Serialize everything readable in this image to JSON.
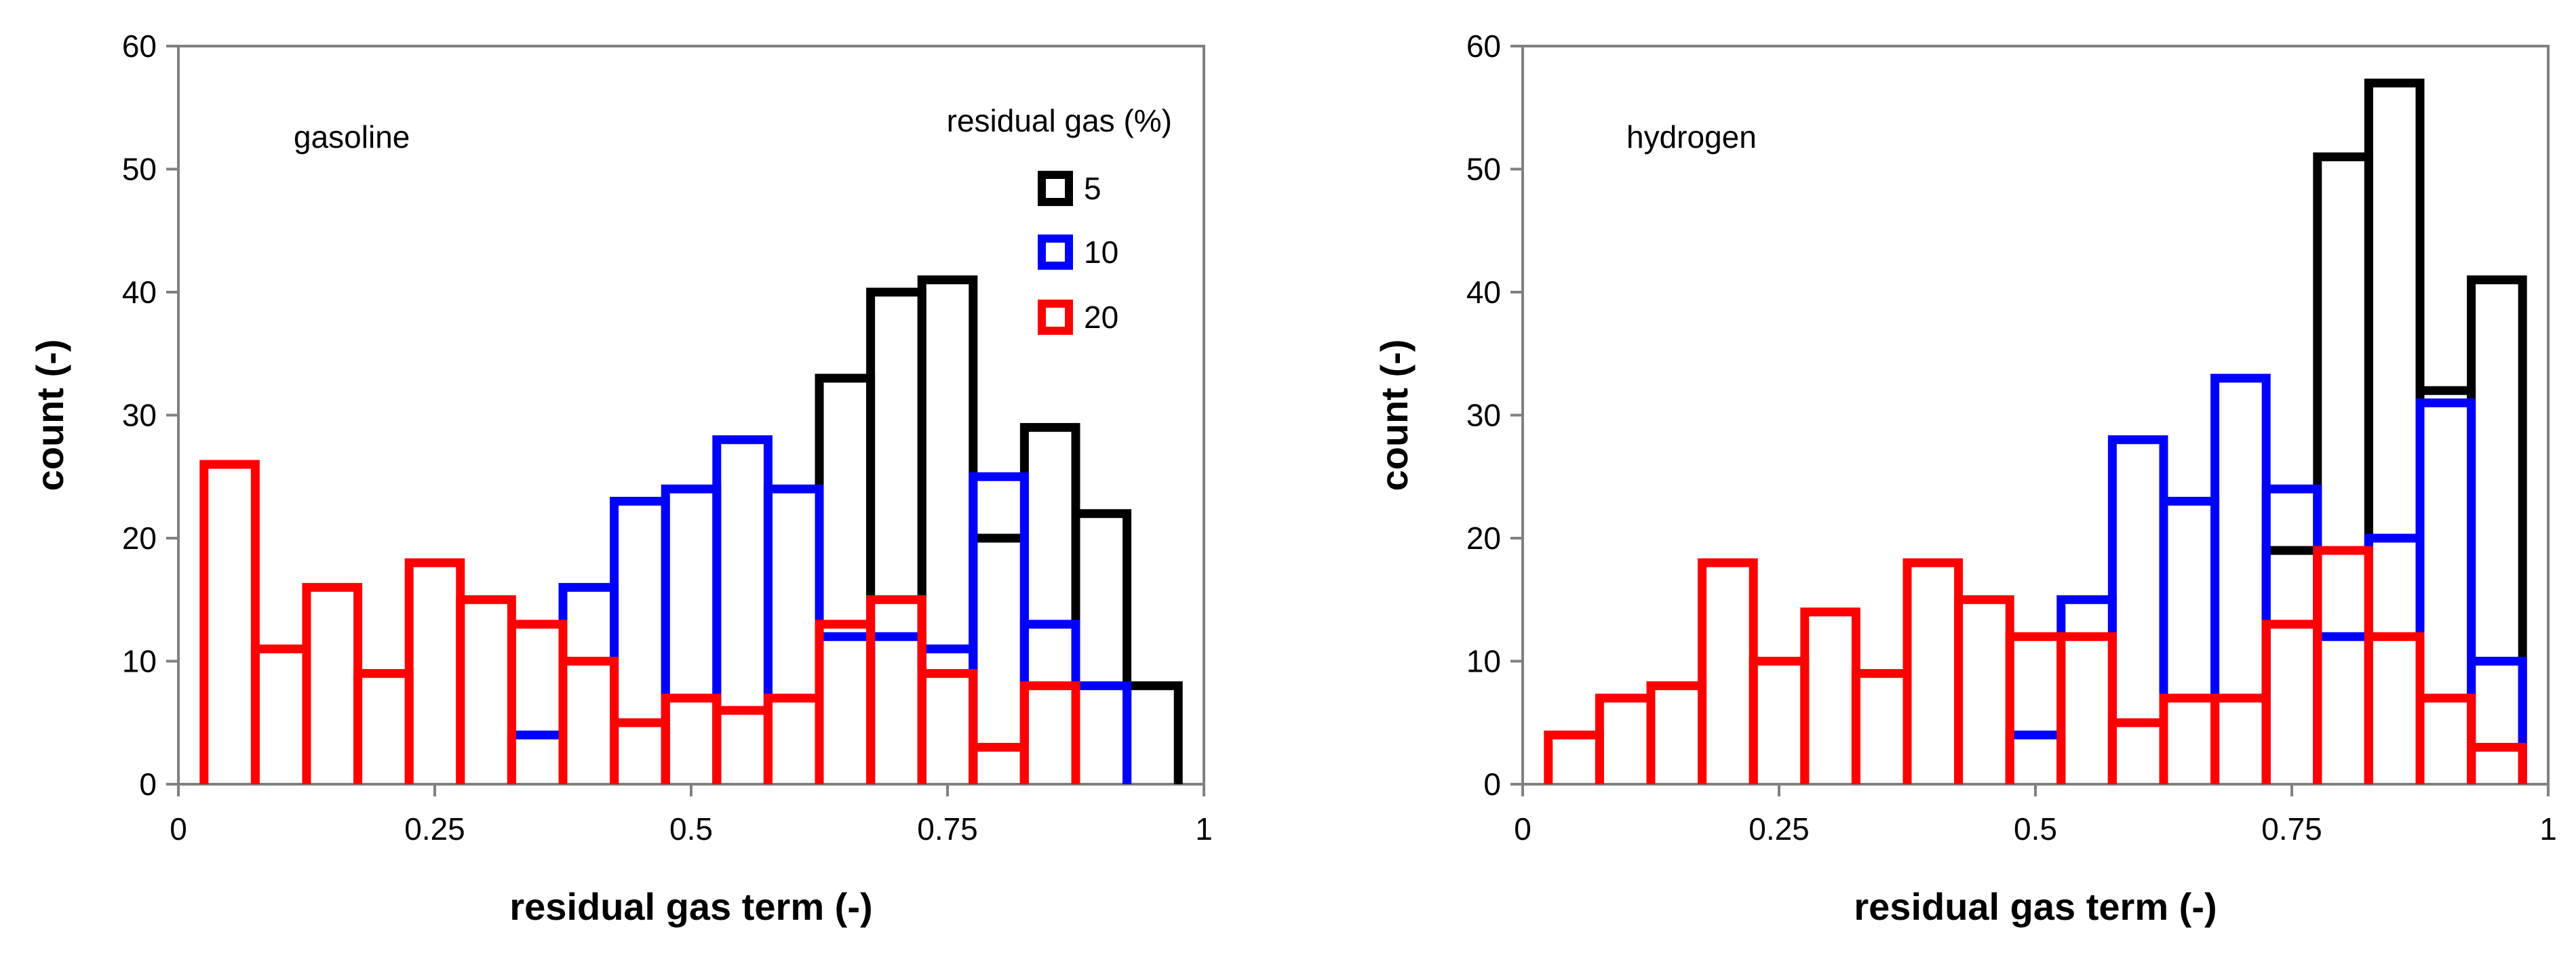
{
  "chart_data": [
    {
      "type": "step-histogram",
      "xlabel": "residual gas term (-)",
      "ylabel": "count (-)",
      "xlim": [
        0,
        1
      ],
      "ylim": [
        0,
        60
      ],
      "x_ticks": [
        "0",
        "0.25",
        "0.5",
        "0.75",
        "1"
      ],
      "y_ticks": [
        "0",
        "10",
        "20",
        "30",
        "40",
        "50",
        "60"
      ],
      "annotation": "gasoline",
      "legend": {
        "title": "residual gas (%)",
        "entries": [
          {
            "label": "5",
            "color": "#000000"
          },
          {
            "label": "10",
            "color": "#0000FF"
          },
          {
            "label": "20",
            "color": "#FF0000"
          }
        ]
      },
      "bin_width": 0.05,
      "bin_starts": [
        0.025,
        0.075,
        0.125,
        0.175,
        0.225,
        0.275,
        0.325,
        0.375,
        0.425,
        0.475,
        0.525,
        0.575,
        0.625,
        0.675,
        0.725,
        0.775,
        0.825,
        0.875,
        0.925
      ],
      "series": [
        {
          "name": "5",
          "color": "#000000",
          "values": [
            0,
            0,
            0,
            0,
            0,
            0,
            0,
            0,
            0,
            0,
            0,
            0,
            33,
            40,
            41,
            20,
            29,
            22,
            8
          ]
        },
        {
          "name": "10",
          "color": "#0000FF",
          "values": [
            0,
            0,
            0,
            0,
            0,
            0,
            4,
            16,
            23,
            24,
            28,
            24,
            12,
            12,
            11,
            25,
            13,
            8,
            0
          ]
        },
        {
          "name": "20",
          "color": "#FF0000",
          "values": [
            26,
            11,
            16,
            9,
            18,
            15,
            13,
            10,
            5,
            7,
            6,
            7,
            13,
            15,
            9,
            3,
            8,
            0,
            0
          ]
        }
      ]
    },
    {
      "type": "step-histogram",
      "xlabel": "residual gas term (-)",
      "ylabel": "count (-)",
      "xlim": [
        0,
        1
      ],
      "ylim": [
        0,
        60
      ],
      "x_ticks": [
        "0",
        "0.25",
        "0.5",
        "0.75",
        "1"
      ],
      "y_ticks": [
        "0",
        "10",
        "20",
        "30",
        "40",
        "50",
        "60"
      ],
      "annotation": "hydrogen",
      "bin_width": 0.05,
      "bin_starts": [
        0.025,
        0.075,
        0.125,
        0.175,
        0.225,
        0.275,
        0.325,
        0.375,
        0.425,
        0.475,
        0.525,
        0.575,
        0.625,
        0.675,
        0.725,
        0.775,
        0.825,
        0.875,
        0.925
      ],
      "series": [
        {
          "name": "5",
          "color": "#000000",
          "values": [
            0,
            0,
            0,
            0,
            0,
            0,
            0,
            0,
            0,
            0,
            0,
            0,
            0,
            0,
            19,
            51,
            57,
            32,
            41
          ]
        },
        {
          "name": "10",
          "color": "#0000FF",
          "values": [
            0,
            0,
            0,
            0,
            0,
            0,
            0,
            0,
            0,
            4,
            15,
            28,
            23,
            33,
            24,
            12,
            20,
            31,
            10
          ]
        },
        {
          "name": "20",
          "color": "#FF0000",
          "values": [
            4,
            7,
            8,
            18,
            10,
            14,
            9,
            18,
            15,
            12,
            12,
            5,
            7,
            7,
            13,
            19,
            12,
            7,
            3
          ]
        }
      ]
    }
  ]
}
